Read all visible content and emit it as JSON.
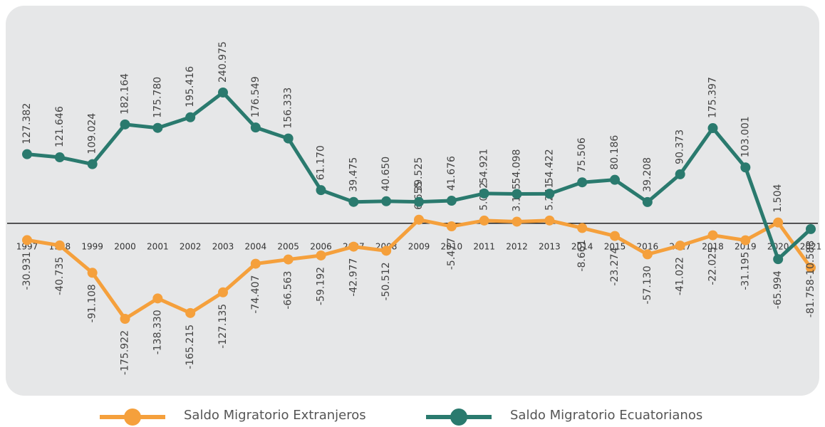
{
  "chart_data": {
    "type": "line",
    "categories": [
      "1997",
      "1998",
      "1999",
      "2000",
      "2001",
      "2002",
      "2003",
      "2004",
      "2005",
      "2006",
      "2007",
      "2008",
      "2009",
      "2010",
      "2011",
      "2012",
      "2013",
      "2014",
      "2015",
      "2016",
      "2017",
      "2018",
      "2019",
      "2020",
      "2021"
    ],
    "series": [
      {
        "name": "Saldo Migratorio Extranjeros",
        "color": "#f5a03c",
        "values": [
          -30931,
          -40735,
          -91108,
          -175922,
          -138330,
          -165215,
          -127135,
          -74407,
          -66563,
          -59192,
          -42977,
          -50512,
          6655,
          -5477,
          5092,
          3105,
          5241,
          -8661,
          -23274,
          -57130,
          -41022,
          -22025,
          -31195,
          1504,
          -81758
        ],
        "value_labels": [
          "-30.931",
          "-40.735",
          "-91.108",
          "-175.922",
          "-138.330",
          "-165.215",
          "-127.135",
          "-74.407",
          "-66.563",
          "-59.192",
          "-42.977",
          "-50.512",
          "6.655",
          "-5.477",
          "5.092",
          "3.105",
          "5.241",
          "-8.661",
          "-23.274",
          "-57.130",
          "-41.022",
          "-22.025",
          "-31.195",
          "1.504",
          "-81.758"
        ]
      },
      {
        "name": "Saldo Migratorio Ecuatorianos",
        "color": "#2a7a6e",
        "values": [
          127382,
          121646,
          109024,
          182164,
          175780,
          195416,
          240975,
          176549,
          156333,
          61170,
          39475,
          40650,
          39525,
          41676,
          54921,
          54098,
          54422,
          75506,
          80186,
          39208,
          90373,
          175397,
          103001,
          -65994,
          -10588
        ],
        "value_labels": [
          "127.382",
          "121.646",
          "109.024",
          "182.164",
          "175.780",
          "195.416",
          "240.975",
          "176.549",
          "156.333",
          "61.170",
          "39.475",
          "40.650",
          "39.525",
          "41.676",
          "54.921",
          "54.098",
          "54.422",
          "75.506",
          "80.186",
          "39.208",
          "90.373",
          "175.397",
          "103.001",
          "-65.994",
          "-10.588"
        ]
      }
    ]
  }
}
